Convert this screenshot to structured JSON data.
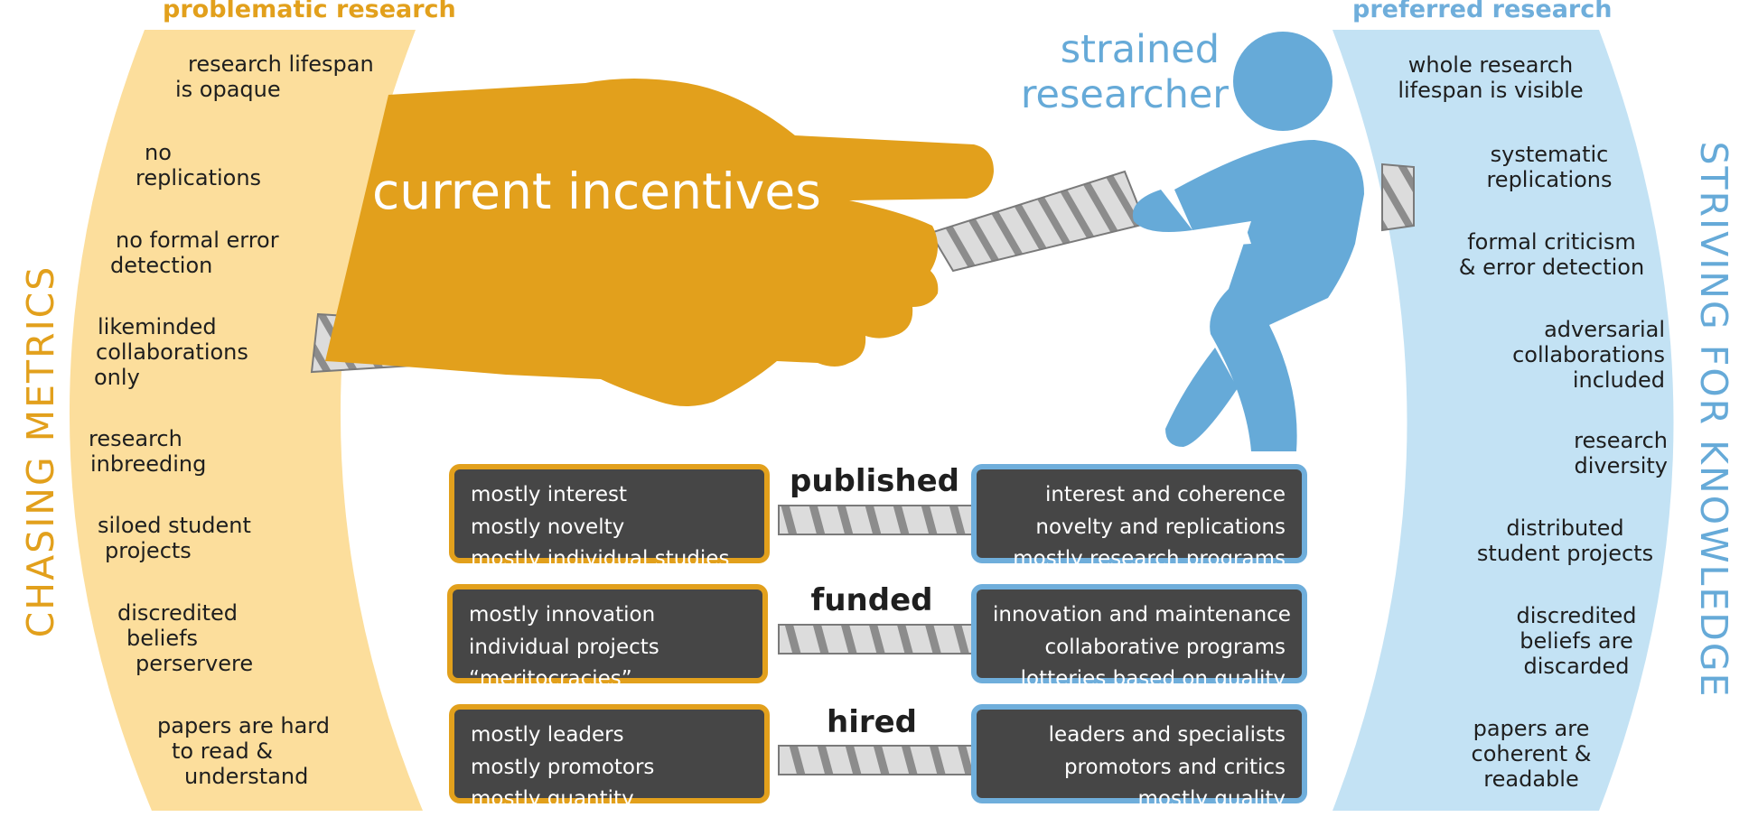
{
  "left_panel": {
    "title": "problematic research",
    "vertical_label": "CHASING METRICS",
    "items": [
      {
        "lines": [
          "research lifespan",
          "is opaque"
        ]
      },
      {
        "lines": [
          "no",
          "replications"
        ]
      },
      {
        "lines": [
          "no formal error",
          "detection"
        ]
      },
      {
        "lines": [
          "likeminded",
          "collaborations",
          "only"
        ]
      },
      {
        "lines": [
          "research",
          "inbreeding"
        ]
      },
      {
        "lines": [
          "siloed student",
          "projects"
        ]
      },
      {
        "lines": [
          "discredited",
          "beliefs",
          "perservere"
        ]
      },
      {
        "lines": [
          "papers are hard",
          "to read &",
          "understand"
        ]
      }
    ]
  },
  "right_panel": {
    "title": "preferred research",
    "vertical_label": "STRIVING FOR KNOWLEDGE",
    "items": [
      {
        "lines": [
          "whole research",
          "lifespan is visible"
        ]
      },
      {
        "lines": [
          "systematic",
          "replications"
        ]
      },
      {
        "lines": [
          "formal criticism",
          "& error detection"
        ]
      },
      {
        "lines": [
          "adversarial",
          "collaborations",
          "included"
        ]
      },
      {
        "lines": [
          "research",
          "diversity"
        ]
      },
      {
        "lines": [
          "distributed",
          "student projects"
        ]
      },
      {
        "lines": [
          "discredited",
          "beliefs are",
          "discarded"
        ]
      },
      {
        "lines": [
          "papers are",
          "coherent &",
          "readable"
        ]
      }
    ]
  },
  "hand_label": "current incentives",
  "researcher_label": [
    "strained",
    "researcher"
  ],
  "comparisons": [
    {
      "label": "published",
      "left": [
        "mostly interest",
        "mostly novelty",
        "mostly individual studies"
      ],
      "right": [
        "interest and coherence",
        "novelty and replications",
        "mostly research programs"
      ]
    },
    {
      "label": "funded",
      "left": [
        "mostly innovation",
        "individual projects",
        "“meritocracies”"
      ],
      "right": [
        "innovation and maintenance",
        "collaborative programs",
        "lotteries based on quality"
      ]
    },
    {
      "label": "hired",
      "left": [
        "mostly leaders",
        "mostly promotors",
        "mostly quantity"
      ],
      "right": [
        "leaders and specialists",
        "promotors and critics",
        "mostly quality"
      ]
    }
  ],
  "colors": {
    "orange": "#E2A01C",
    "light_orange": "#FCDE9C",
    "blue": "#66AAD8",
    "light_blue": "#C3E2F4",
    "box": "#464646"
  }
}
